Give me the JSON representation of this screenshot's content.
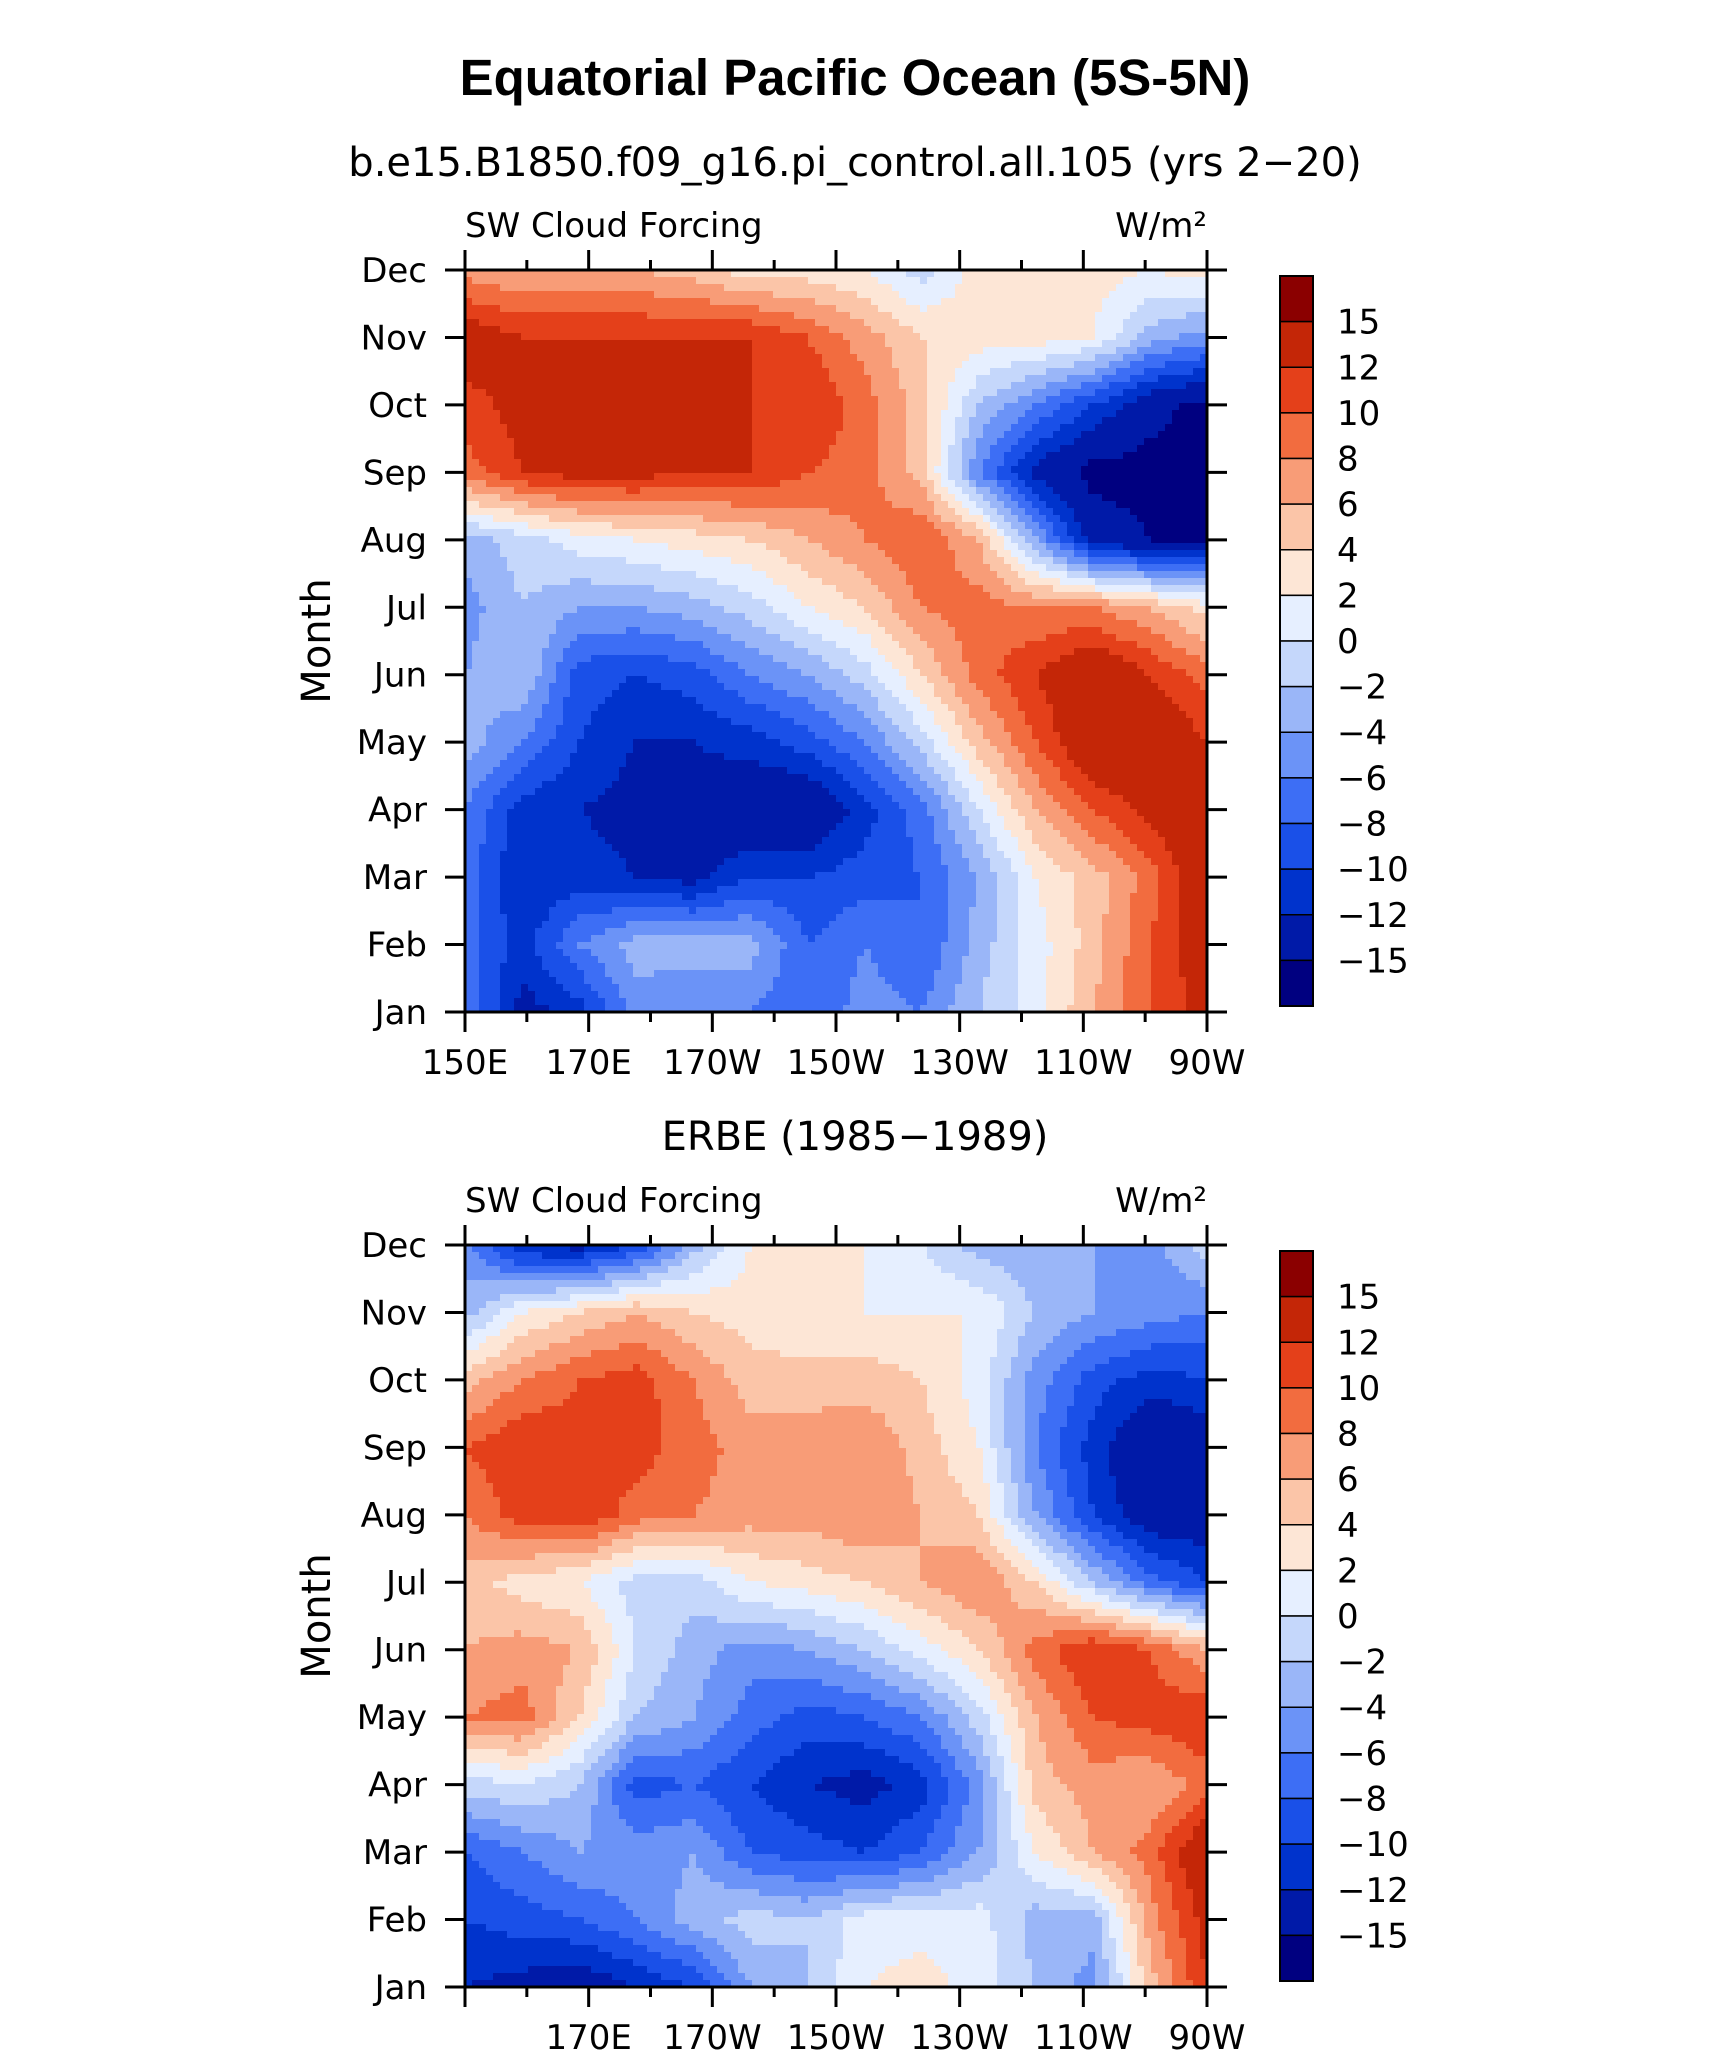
{
  "title": "Equatorial Pacific Ocean (5S-5N)",
  "chart_data": [
    {
      "type": "heatmap",
      "title": "b.e15.B1850.f09_g16.pi_control.all.105 (yrs 2−20)",
      "left_string": "SW Cloud Forcing",
      "right_string": "W/m²",
      "ylabel": "Month",
      "y_categories": [
        "Jan",
        "Feb",
        "Mar",
        "Apr",
        "May",
        "Jun",
        "Jul",
        "Aug",
        "Sep",
        "Oct",
        "Nov",
        "Dec"
      ],
      "x_ticks": [
        {
          "lon": 150,
          "label": "150E"
        },
        {
          "lon": 170,
          "label": "170E"
        },
        {
          "lon": 190,
          "label": "170W"
        },
        {
          "lon": 210,
          "label": "150W"
        },
        {
          "lon": 230,
          "label": "130W"
        },
        {
          "lon": 250,
          "label": "110W"
        },
        {
          "lon": 270,
          "label": "90W"
        }
      ],
      "xlim": [
        150,
        270
      ],
      "colorbar_labels": [
        "15",
        "12",
        "10",
        "8",
        "6",
        "4",
        "2",
        "0",
        "−2",
        "−4",
        "−6",
        "−8",
        "−10",
        "−12",
        "−15"
      ],
      "colorbar_levels": [
        -15,
        -12,
        -10,
        -8,
        -6,
        -4,
        -2,
        0,
        2,
        4,
        6,
        8,
        10,
        12,
        15
      ],
      "colors": [
        "#000080",
        "#001aa8",
        "#0033cc",
        "#1a50e8",
        "#3d6ef5",
        "#6b93f7",
        "#9ab6f8",
        "#c5d7fb",
        "#e6efff",
        "#fde6d6",
        "#fbc5a8",
        "#f89c77",
        "#f26c3f",
        "#e4401a",
        "#c42607",
        "#8b0000"
      ],
      "data": [
        [
          -6,
          -13,
          -11,
          -5,
          -6,
          -6,
          -8,
          -5,
          -6,
          -2,
          1,
          6,
          10,
          13
        ],
        [
          -7,
          -11,
          -6,
          -3,
          -3,
          -3,
          -8,
          -6,
          -8,
          -3,
          1,
          5,
          10,
          14
        ],
        [
          -7,
          -12,
          -11,
          -12,
          -13,
          -10,
          -10,
          -9,
          -8,
          -4,
          2,
          5,
          9,
          15
        ],
        [
          -6,
          -11,
          -12,
          -13,
          -13,
          -15,
          -15,
          -11,
          -7,
          0,
          6,
          10,
          13,
          15
        ],
        [
          -3,
          -6,
          -10,
          -12,
          -12,
          -11,
          -9,
          -6,
          -1,
          5,
          10,
          15,
          15,
          12
        ],
        [
          -4,
          -2,
          -9,
          -10,
          -9,
          -6,
          -4,
          -1,
          4,
          9,
          12,
          15,
          12,
          9
        ],
        [
          -5,
          -2,
          -4,
          -4,
          -3,
          -1,
          2,
          4,
          8,
          9,
          8,
          8,
          6,
          3
        ],
        [
          -3,
          -1,
          1,
          2,
          3,
          4,
          6,
          8,
          10,
          6,
          -4,
          -13,
          -15,
          -15
        ],
        [
          9,
          12,
          13,
          13,
          12,
          12,
          10,
          9,
          5,
          -6,
          -13,
          -16,
          -16,
          -16
        ],
        [
          11,
          13,
          15,
          12,
          12,
          12,
          12,
          9,
          5,
          -2,
          -6,
          -10,
          -14,
          -16
        ],
        [
          14,
          12,
          12,
          12,
          12,
          12,
          10,
          7,
          4,
          3,
          3,
          2,
          -3,
          -5
        ],
        [
          7,
          6,
          6,
          6,
          5,
          3,
          3,
          2,
          -1,
          3,
          4,
          3,
          2,
          3
        ]
      ]
    },
    {
      "type": "heatmap",
      "title": "ERBE (1985−1989)",
      "left_string": "SW Cloud Forcing",
      "right_string": "W/m²",
      "ylabel": "Month",
      "y_categories": [
        "Jan",
        "Feb",
        "Mar",
        "Apr",
        "May",
        "Jun",
        "Jul",
        "Aug",
        "Sep",
        "Oct",
        "Nov",
        "Dec"
      ],
      "x_ticks": [
        {
          "lon": 170,
          "label": "170E"
        },
        {
          "lon": 190,
          "label": "170W"
        },
        {
          "lon": 210,
          "label": "150W"
        },
        {
          "lon": 230,
          "label": "130W"
        },
        {
          "lon": 250,
          "label": "110W"
        },
        {
          "lon": 270,
          "label": "90W"
        }
      ],
      "xlim": [
        150,
        270
      ],
      "colorbar_labels": [
        "15",
        "12",
        "10",
        "8",
        "6",
        "4",
        "2",
        "0",
        "−2",
        "−4",
        "−6",
        "−8",
        "−10",
        "−12",
        "−15"
      ],
      "colorbar_levels": [
        -15,
        -12,
        -10,
        -8,
        -6,
        -4,
        -2,
        0,
        2,
        4,
        6,
        8,
        10,
        12,
        15
      ],
      "colors": [
        "#000080",
        "#001aa8",
        "#0033cc",
        "#1a50e8",
        "#3d6ef5",
        "#6b93f7",
        "#9ab6f8",
        "#c5d7fb",
        "#e6efff",
        "#fde6d6",
        "#fbc5a8",
        "#f89c77",
        "#f26c3f",
        "#e4401a",
        "#c42607",
        "#8b0000"
      ],
      "data": [
        [
          -12,
          -13,
          -14,
          -12,
          -10,
          -4,
          -2,
          2,
          3,
          1,
          -2,
          -5,
          5,
          12
        ],
        [
          -10,
          -9,
          -8,
          -6,
          -3,
          -1,
          -2,
          1,
          1,
          1,
          -3,
          -3,
          7,
          13
        ],
        [
          -8,
          -6,
          -4,
          -5,
          -4,
          -8,
          -9,
          -10,
          -8,
          -4,
          2,
          6,
          9,
          15
        ],
        [
          -1,
          0,
          -2,
          -9,
          -8,
          -10,
          -12,
          -13,
          -11,
          -5,
          5,
          7,
          6,
          9
        ],
        [
          8,
          9,
          4,
          -2,
          -4,
          -7,
          -9,
          -8,
          -6,
          -1,
          6,
          10,
          11,
          12
        ],
        [
          6,
          7,
          6,
          0,
          -3,
          -5,
          -4,
          -2,
          1,
          4,
          9,
          12,
          10,
          6
        ],
        [
          5,
          3,
          2,
          -1,
          -1,
          2,
          3,
          4,
          6,
          8,
          4,
          -2,
          -7,
          -10
        ],
        [
          8,
          11,
          12,
          9,
          8,
          7,
          7,
          8,
          6,
          4,
          -4,
          -10,
          -14,
          -14
        ],
        [
          10,
          12,
          11,
          11,
          9,
          7,
          7,
          8,
          5,
          2,
          -6,
          -11,
          -15,
          -14
        ],
        [
          5,
          8,
          10,
          11,
          8,
          5,
          5,
          5,
          4,
          1,
          -5,
          -9,
          -11,
          -10
        ],
        [
          -3,
          2,
          4,
          6,
          4,
          3,
          2,
          2,
          2,
          2,
          -2,
          -4,
          -5,
          -6
        ],
        [
          -5,
          -12,
          -13,
          -10,
          -3,
          2,
          2,
          2,
          0,
          -3,
          -4,
          -4,
          -5,
          -1
        ]
      ]
    }
  ]
}
